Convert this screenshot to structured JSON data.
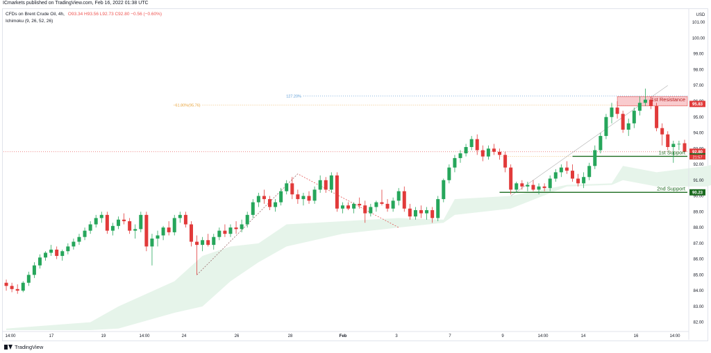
{
  "header": {
    "publisher": "ICmarkets published on TradingView.com, Feb 16, 2022 01:38 UTC"
  },
  "legend": {
    "symbol": "CFDs on Brent Crude Oil, 4h,",
    "ohlc": "O93.34 H93.56 L92.73 C92.80 −0.56 (−0.60%)",
    "indicator": "Ichimoku (9, 26, 52, 26)"
  },
  "footer": {
    "logo_text": "TradingView",
    "logo_icon": "tradingview-logo-icon"
  },
  "colors": {
    "up": "#26a65b",
    "down": "#e13a3a",
    "cloud": "#e6f4ea",
    "resistance": "#f7b9bd",
    "support": "#1b6b1f",
    "fib": "#e8a33a",
    "ext": "#5b9bd5"
  },
  "chart_data": {
    "type": "candlestick",
    "currency": "USD",
    "ylim": [
      81.5,
      101.8
    ],
    "y_ticks": [
      "82.00",
      "83.00",
      "84.00",
      "85.00",
      "86.00",
      "87.00",
      "88.00",
      "89.00",
      "90.00",
      "91.00",
      "92.00",
      "93.00",
      "94.00",
      "95.00",
      "96.00",
      "97.00",
      "98.00",
      "99.00",
      "100.00",
      "101.00"
    ],
    "x_labels": [
      "14:00",
      "17",
      "19",
      "14:00",
      "24",
      "26",
      "28",
      "Feb",
      "3",
      "7",
      "9",
      "14:00",
      "14",
      "16",
      "14:00"
    ],
    "candles": [
      [
        84.5,
        84.7,
        84.0,
        84.3
      ],
      [
        84.3,
        84.5,
        83.9,
        84.1
      ],
      [
        84.1,
        84.4,
        83.8,
        84.0
      ],
      [
        84.0,
        84.6,
        83.9,
        84.5
      ],
      [
        84.5,
        85.2,
        84.3,
        85.0
      ],
      [
        85.0,
        85.8,
        84.8,
        85.6
      ],
      [
        85.6,
        86.3,
        85.4,
        86.1
      ],
      [
        86.1,
        86.5,
        85.9,
        86.4
      ],
      [
        86.4,
        86.9,
        86.2,
        86.6
      ],
      [
        86.6,
        86.8,
        86.0,
        86.2
      ],
      [
        86.2,
        86.6,
        85.9,
        86.5
      ],
      [
        86.5,
        87.0,
        86.3,
        86.8
      ],
      [
        86.8,
        87.3,
        86.6,
        87.1
      ],
      [
        87.1,
        87.6,
        86.9,
        87.4
      ],
      [
        87.4,
        88.0,
        87.2,
        87.8
      ],
      [
        87.8,
        88.4,
        87.6,
        88.2
      ],
      [
        88.2,
        88.8,
        88.0,
        88.6
      ],
      [
        88.6,
        89.0,
        88.3,
        88.8
      ],
      [
        88.8,
        89.0,
        87.6,
        87.8
      ],
      [
        87.8,
        88.3,
        87.5,
        88.1
      ],
      [
        88.1,
        88.7,
        87.9,
        88.5
      ],
      [
        88.5,
        88.9,
        88.2,
        88.4
      ],
      [
        88.4,
        88.6,
        87.6,
        87.8
      ],
      [
        87.8,
        88.2,
        87.3,
        87.9
      ],
      [
        87.9,
        89.0,
        87.7,
        88.8
      ],
      [
        88.8,
        89.0,
        86.5,
        86.8
      ],
      [
        86.8,
        87.6,
        85.6,
        87.3
      ],
      [
        87.3,
        87.8,
        86.8,
        87.5
      ],
      [
        87.5,
        88.1,
        87.2,
        88.0
      ],
      [
        88.0,
        88.4,
        87.5,
        87.7
      ],
      [
        87.7,
        88.8,
        87.5,
        88.6
      ],
      [
        88.6,
        89.0,
        88.3,
        88.8
      ],
      [
        88.8,
        89.0,
        88.0,
        88.2
      ],
      [
        88.2,
        88.4,
        86.8,
        87.1
      ],
      [
        87.1,
        87.5,
        85.0,
        86.9
      ],
      [
        86.9,
        87.4,
        86.5,
        87.2
      ],
      [
        87.2,
        87.6,
        86.8,
        86.9
      ],
      [
        86.9,
        87.6,
        86.6,
        87.4
      ],
      [
        87.4,
        88.0,
        87.2,
        87.8
      ],
      [
        87.8,
        88.2,
        87.4,
        87.6
      ],
      [
        87.6,
        88.2,
        87.4,
        88.0
      ],
      [
        88.0,
        88.4,
        87.6,
        87.9
      ],
      [
        87.9,
        88.5,
        87.7,
        88.2
      ],
      [
        88.2,
        89.0,
        88.0,
        88.8
      ],
      [
        88.8,
        89.8,
        88.6,
        89.6
      ],
      [
        89.6,
        90.2,
        89.3,
        90.0
      ],
      [
        90.0,
        90.4,
        89.5,
        89.8
      ],
      [
        89.8,
        90.0,
        89.1,
        89.3
      ],
      [
        89.3,
        89.8,
        89.0,
        89.6
      ],
      [
        89.6,
        90.5,
        89.4,
        90.3
      ],
      [
        90.3,
        91.0,
        90.1,
        90.8
      ],
      [
        90.8,
        91.2,
        89.8,
        90.1
      ],
      [
        90.1,
        90.4,
        89.5,
        89.8
      ],
      [
        89.8,
        90.2,
        89.4,
        90.0
      ],
      [
        90.0,
        90.3,
        89.5,
        89.7
      ],
      [
        89.7,
        90.6,
        89.5,
        90.4
      ],
      [
        90.4,
        91.3,
        90.2,
        91.0
      ],
      [
        91.0,
        91.2,
        90.2,
        90.4
      ],
      [
        90.4,
        91.5,
        90.2,
        91.3
      ],
      [
        91.3,
        91.5,
        89.0,
        89.2
      ],
      [
        89.2,
        89.6,
        88.9,
        89.4
      ],
      [
        89.4,
        89.6,
        89.1,
        89.2
      ],
      [
        89.2,
        89.6,
        88.9,
        89.5
      ],
      [
        89.5,
        89.9,
        89.2,
        89.4
      ],
      [
        89.4,
        89.7,
        88.3,
        88.9
      ],
      [
        88.9,
        89.5,
        88.7,
        89.3
      ],
      [
        89.3,
        89.7,
        89.0,
        89.6
      ],
      [
        89.6,
        90.4,
        89.4,
        89.5
      ],
      [
        89.5,
        89.8,
        89.0,
        89.2
      ],
      [
        89.2,
        89.9,
        89.0,
        89.7
      ],
      [
        89.7,
        90.5,
        89.4,
        90.3
      ],
      [
        90.3,
        90.6,
        89.0,
        89.2
      ],
      [
        89.2,
        89.5,
        88.5,
        88.7
      ],
      [
        88.7,
        89.3,
        88.5,
        89.1
      ],
      [
        89.1,
        89.4,
        88.6,
        88.9
      ],
      [
        88.9,
        89.3,
        88.5,
        89.1
      ],
      [
        89.1,
        89.3,
        88.3,
        88.6
      ],
      [
        88.6,
        90.0,
        88.4,
        89.8
      ],
      [
        89.8,
        91.1,
        89.6,
        91.0
      ],
      [
        91.0,
        92.0,
        90.8,
        91.8
      ],
      [
        91.8,
        92.6,
        91.5,
        92.4
      ],
      [
        92.4,
        92.9,
        92.1,
        92.7
      ],
      [
        92.7,
        93.3,
        92.5,
        93.1
      ],
      [
        93.1,
        93.8,
        92.9,
        93.6
      ],
      [
        93.6,
        93.9,
        92.6,
        92.9
      ],
      [
        92.9,
        93.2,
        92.2,
        92.5
      ],
      [
        92.5,
        93.2,
        92.3,
        93.0
      ],
      [
        93.0,
        93.3,
        92.6,
        92.8
      ],
      [
        92.8,
        93.0,
        92.3,
        92.6
      ],
      [
        92.6,
        92.8,
        91.5,
        91.8
      ],
      [
        91.8,
        92.0,
        90.1,
        90.4
      ],
      [
        90.4,
        90.9,
        90.2,
        90.8
      ],
      [
        90.8,
        91.0,
        90.4,
        90.6
      ],
      [
        90.6,
        90.9,
        90.3,
        90.7
      ],
      [
        90.7,
        91.0,
        90.3,
        90.4
      ],
      [
        90.4,
        90.8,
        90.1,
        90.6
      ],
      [
        90.6,
        90.8,
        90.3,
        90.5
      ],
      [
        90.5,
        91.3,
        90.3,
        91.1
      ],
      [
        91.1,
        91.7,
        90.9,
        91.5
      ],
      [
        91.5,
        92.0,
        91.2,
        91.8
      ],
      [
        91.8,
        92.2,
        91.4,
        91.6
      ],
      [
        91.6,
        92.0,
        90.9,
        91.1
      ],
      [
        91.1,
        91.4,
        90.6,
        90.8
      ],
      [
        90.8,
        91.5,
        90.5,
        91.2
      ],
      [
        91.2,
        92.1,
        91.0,
        91.9
      ],
      [
        91.9,
        93.2,
        91.7,
        92.9
      ],
      [
        92.9,
        94.0,
        92.7,
        93.8
      ],
      [
        93.8,
        95.2,
        93.6,
        95.0
      ],
      [
        95.0,
        95.9,
        94.6,
        95.6
      ],
      [
        95.6,
        96.0,
        94.9,
        95.2
      ],
      [
        95.2,
        95.4,
        94.0,
        94.2
      ],
      [
        94.2,
        94.9,
        93.8,
        94.6
      ],
      [
        94.6,
        95.6,
        94.3,
        95.4
      ],
      [
        95.4,
        96.3,
        95.1,
        95.9
      ],
      [
        95.9,
        96.8,
        95.7,
        96.1
      ],
      [
        96.1,
        96.3,
        95.5,
        95.7
      ],
      [
        95.7,
        95.9,
        94.1,
        94.3
      ],
      [
        94.3,
        94.6,
        93.2,
        93.9
      ],
      [
        93.9,
        94.1,
        92.9,
        93.1
      ],
      [
        93.1,
        93.5,
        92.1,
        93.3
      ],
      [
        93.3,
        93.5,
        92.9,
        93.3
      ],
      [
        93.34,
        93.56,
        92.73,
        92.8
      ]
    ],
    "cloud_top": [
      [
        0,
        81.6
      ],
      [
        15,
        82.0
      ],
      [
        20,
        83.0
      ],
      [
        30,
        84.6
      ],
      [
        35,
        86.2
      ],
      [
        40,
        86.8
      ],
      [
        45,
        87.0
      ],
      [
        50,
        88.2
      ],
      [
        60,
        88.4
      ],
      [
        70,
        88.6
      ],
      [
        78,
        88.5
      ],
      [
        80,
        89.8
      ],
      [
        90,
        90.0
      ],
      [
        100,
        90.7
      ],
      [
        108,
        90.8
      ],
      [
        110,
        91.9
      ],
      [
        116,
        91.5
      ],
      [
        125,
        91.9
      ],
      [
        133,
        92.6
      ]
    ],
    "cloud_bottom": [
      [
        0,
        81.5
      ],
      [
        15,
        81.5
      ],
      [
        20,
        81.6
      ],
      [
        30,
        82.6
      ],
      [
        35,
        83.0
      ],
      [
        40,
        84.6
      ],
      [
        45,
        85.8
      ],
      [
        50,
        86.8
      ],
      [
        60,
        87.6
      ],
      [
        70,
        88.0
      ],
      [
        78,
        88.3
      ],
      [
        80,
        88.8
      ],
      [
        90,
        89.2
      ],
      [
        100,
        90.6
      ],
      [
        108,
        90.7
      ],
      [
        110,
        91.0
      ],
      [
        116,
        90.6
      ],
      [
        125,
        90.6
      ],
      [
        133,
        91.6
      ]
    ],
    "current_price": "92.80",
    "price_labels": [
      {
        "value": 95.83,
        "text": "95.83",
        "color": "#e13a3a"
      },
      {
        "value": 92.8,
        "text": "92.80",
        "color": "#e13a3a"
      },
      {
        "value": 92.51,
        "text": "92.51",
        "color": "#1b6b1f"
      },
      {
        "value": 90.23,
        "text": "90.23",
        "color": "#1b6b1f"
      }
    ],
    "countdown": "21:57",
    "levels": [
      {
        "name": "1st Resistance",
        "low": 95.7,
        "high": 96.3
      },
      {
        "name": "1st Support",
        "value": 92.51
      },
      {
        "name": "2nd Support",
        "value": 90.23
      }
    ],
    "fib_label": "−61.80%(95.76)",
    "fib_value": 95.76,
    "ext_label": "127.20%",
    "ext_value": 96.34
  }
}
